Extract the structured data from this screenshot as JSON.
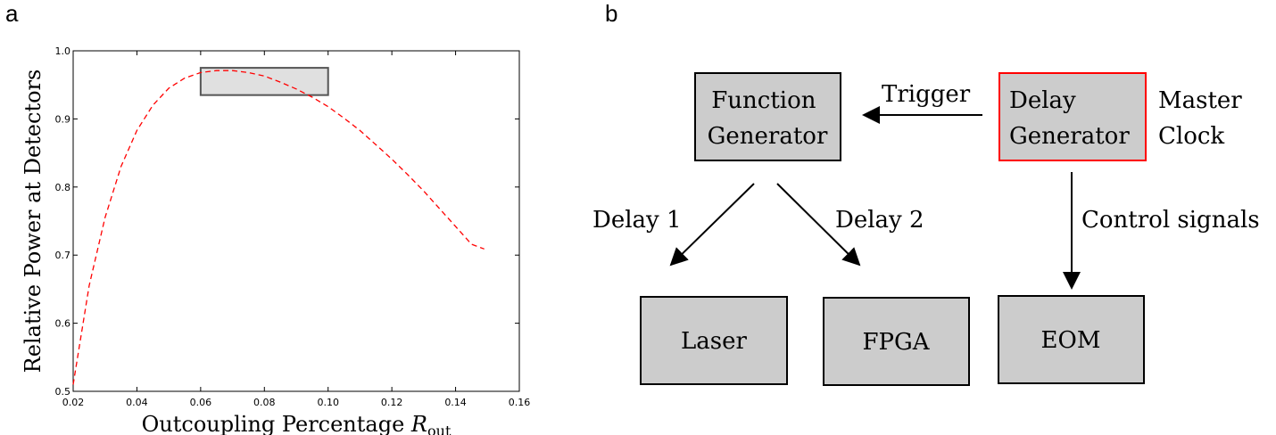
{
  "panels": {
    "a": "a",
    "b": "b"
  },
  "chart_data": {
    "type": "line",
    "title": "",
    "xlabel": "Outcoupling Percentage",
    "xlabel_var": "R",
    "xlabel_sub": "out",
    "ylabel": "Relative Power at Detectors",
    "xlim": [
      0.02,
      0.16
    ],
    "ylim": [
      0.5,
      1.0
    ],
    "xticks": [
      "0.02",
      "0.04",
      "0.06",
      "0.08",
      "0.10",
      "0.12",
      "0.14",
      "0.16"
    ],
    "yticks": [
      "0.5",
      "0.6",
      "0.7",
      "0.8",
      "0.9",
      "1.0"
    ],
    "grid": false,
    "series": [
      {
        "style": "dashed",
        "color": "#ff0000",
        "x": [
          0.02,
          0.025,
          0.03,
          0.035,
          0.04,
          0.045,
          0.05,
          0.055,
          0.06,
          0.065,
          0.07,
          0.075,
          0.08,
          0.085,
          0.09,
          0.095,
          0.1,
          0.105,
          0.11,
          0.115,
          0.12,
          0.125,
          0.13,
          0.135,
          0.14,
          0.145,
          0.149
        ],
        "y": [
          0.51,
          0.655,
          0.755,
          0.83,
          0.883,
          0.92,
          0.945,
          0.96,
          0.968,
          0.971,
          0.971,
          0.968,
          0.963,
          0.954,
          0.944,
          0.932,
          0.918,
          0.901,
          0.883,
          0.862,
          0.841,
          0.818,
          0.794,
          0.768,
          0.742,
          0.716,
          0.709
        ]
      }
    ],
    "highlight_region": {
      "x": [
        0.06,
        0.1
      ],
      "y": [
        0.935,
        0.975
      ],
      "fill": "#e0e0e0",
      "stroke": "#555555"
    }
  },
  "diagram": {
    "boxes": {
      "function_generator": {
        "lines": [
          "Function",
          "Generator"
        ],
        "stroke": "#000000"
      },
      "delay_generator": {
        "lines": [
          "Delay",
          "Generator"
        ],
        "stroke": "#ff0000"
      },
      "laser": {
        "lines": [
          "Laser"
        ],
        "stroke": "#000000"
      },
      "fpga": {
        "lines": [
          "FPGA"
        ],
        "stroke": "#000000"
      },
      "eom": {
        "lines": [
          "EOM"
        ],
        "stroke": "#000000"
      }
    },
    "box_fill": "#cccccc",
    "master_clock": [
      "Master",
      "Clock"
    ],
    "edges": {
      "trigger": "Trigger",
      "delay1": "Delay 1",
      "delay2": "Delay 2",
      "control": "Control signals"
    }
  }
}
